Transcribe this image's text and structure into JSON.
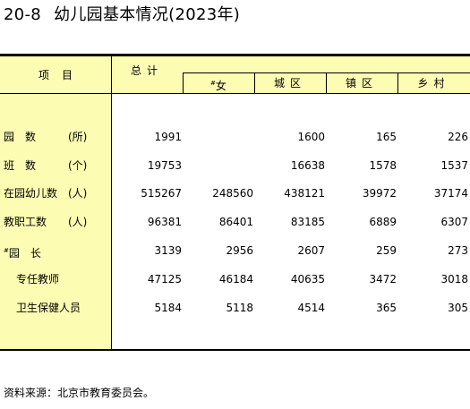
{
  "title": {
    "number": "20-8",
    "text": "幼儿园基本情况(2023年)"
  },
  "table": {
    "header": {
      "item": "项目",
      "total": "总计",
      "female_mark": "#",
      "female": "女",
      "urban": "城区",
      "town": "镇区",
      "rural": "乡村"
    },
    "rows": [
      {
        "label": "园　数　　　(所)",
        "total": "1991",
        "female": "",
        "urban": "1600",
        "town": "165",
        "rural": "226"
      },
      {
        "label": "班　数　　　(个)",
        "total": "19753",
        "female": "",
        "urban": "16638",
        "town": "1578",
        "rural": "1537"
      },
      {
        "label": "在园幼儿数　(人)",
        "total": "515267",
        "female": "248560",
        "urban": "438121",
        "town": "39972",
        "rural": "37174"
      },
      {
        "label": "教职工数　　(人)",
        "total": "96381",
        "female": "86401",
        "urban": "83185",
        "town": "6889",
        "rural": "6307"
      },
      {
        "label_mark": "#",
        "label": "园　长",
        "total": "3139",
        "female": "2956",
        "urban": "2607",
        "town": "259",
        "rural": "273"
      },
      {
        "label": "专任教师",
        "total": "47125",
        "female": "46184",
        "urban": "40635",
        "town": "3472",
        "rural": "3018"
      },
      {
        "label": "卫生保健人员",
        "total": "5184",
        "female": "5118",
        "urban": "4514",
        "town": "365",
        "rural": "305"
      }
    ]
  },
  "source": "资料来源：北京市教育委员会。"
}
